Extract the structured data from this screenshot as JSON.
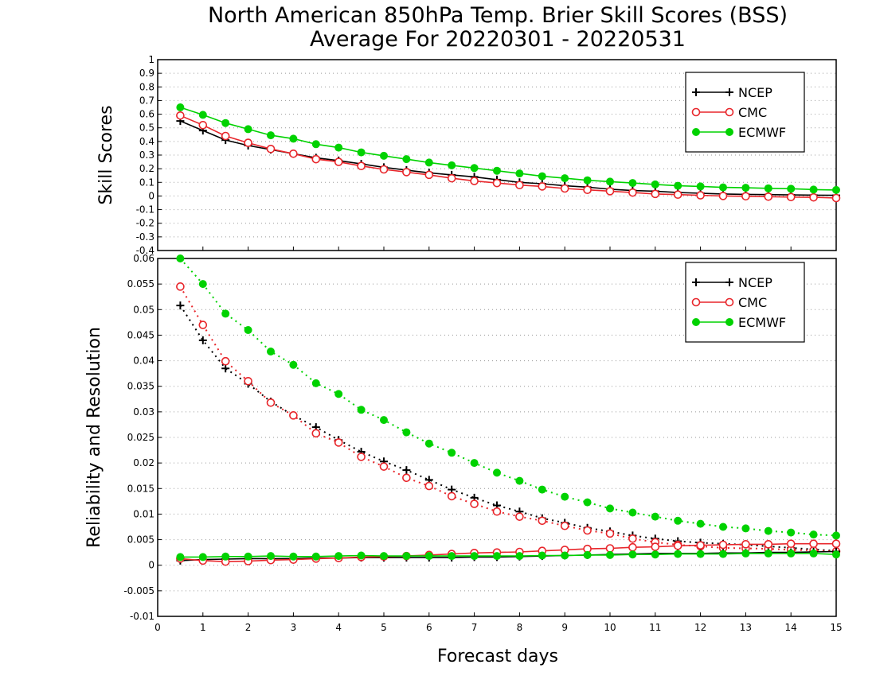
{
  "title_line1": "North American 850hPa Temp. Brier Skill Scores (BSS)",
  "title_line2": "Average For 20220301 - 20220531",
  "xlabel": "Forecast days",
  "legend_position": "top-right",
  "colors": {
    "NCEP": "#000000",
    "CMC": "#e8262b",
    "ECMWF": "#00d200"
  },
  "chart_data": [
    {
      "type": "line",
      "ylabel": "Skill Scores",
      "xlim": [
        0,
        15
      ],
      "ylim": [
        -0.4,
        1
      ],
      "x_ticks": [
        0,
        1,
        2,
        3,
        4,
        5,
        6,
        7,
        8,
        9,
        10,
        11,
        12,
        13,
        14,
        15
      ],
      "y_ticks": [
        "-0.4",
        "-0.3",
        "-0.2",
        "-0.1",
        "0",
        "0.1",
        "0.2",
        "0.3",
        "0.4",
        "0.5",
        "0.6",
        "0.7",
        "0.8",
        "0.9",
        "1"
      ],
      "grid": true,
      "x": [
        0.5,
        1,
        1.5,
        2,
        2.5,
        3,
        3.5,
        4,
        4.5,
        5,
        5.5,
        6,
        6.5,
        7,
        7.5,
        8,
        8.5,
        9,
        9.5,
        10,
        10.5,
        11,
        11.5,
        12,
        12.5,
        13,
        13.5,
        14,
        14.5,
        15
      ],
      "series": [
        {
          "name": "NCEP",
          "marker": "plus",
          "values": [
            0.55,
            0.48,
            0.41,
            0.37,
            0.34,
            0.31,
            0.28,
            0.26,
            0.235,
            0.21,
            0.19,
            0.17,
            0.155,
            0.14,
            0.12,
            0.1,
            0.09,
            0.075,
            0.065,
            0.05,
            0.04,
            0.035,
            0.025,
            0.02,
            0.015,
            0.012,
            0.01,
            0.008,
            0.006,
            0.005
          ]
        },
        {
          "name": "CMC",
          "marker": "circle",
          "values": [
            0.59,
            0.52,
            0.44,
            0.39,
            0.345,
            0.31,
            0.27,
            0.25,
            0.22,
            0.195,
            0.175,
            0.155,
            0.13,
            0.11,
            0.095,
            0.08,
            0.07,
            0.055,
            0.045,
            0.035,
            0.025,
            0.015,
            0.01,
            0.005,
            0.0,
            -0.002,
            -0.005,
            -0.008,
            -0.01,
            -0.015
          ]
        },
        {
          "name": "ECMWF",
          "marker": "dot",
          "values": [
            0.65,
            0.595,
            0.535,
            0.49,
            0.445,
            0.42,
            0.38,
            0.355,
            0.32,
            0.295,
            0.27,
            0.245,
            0.225,
            0.205,
            0.185,
            0.165,
            0.145,
            0.13,
            0.115,
            0.105,
            0.095,
            0.085,
            0.075,
            0.07,
            0.063,
            0.06,
            0.056,
            0.053,
            0.047,
            0.044
          ]
        }
      ]
    },
    {
      "type": "line",
      "ylabel": "Reliability and Resolution",
      "xlim": [
        0,
        15
      ],
      "ylim": [
        -0.01,
        0.06
      ],
      "x_ticks": [
        0,
        1,
        2,
        3,
        4,
        5,
        6,
        7,
        8,
        9,
        10,
        11,
        12,
        13,
        14,
        15
      ],
      "y_ticks": [
        "-0.01",
        "-0.005",
        "0",
        "0.005",
        "0.01",
        "0.015",
        "0.02",
        "0.025",
        "0.03",
        "0.035",
        "0.04",
        "0.045",
        "0.05",
        "0.055",
        "0.06"
      ],
      "grid": true,
      "x": [
        0.5,
        1,
        1.5,
        2,
        2.5,
        3,
        3.5,
        4,
        4.5,
        5,
        5.5,
        6,
        6.5,
        7,
        7.5,
        8,
        8.5,
        9,
        9.5,
        10,
        10.5,
        11,
        11.5,
        12,
        12.5,
        13,
        13.5,
        14,
        14.5,
        15
      ],
      "series": [
        {
          "name": "NCEP",
          "marker": "plus",
          "kind": "resolution",
          "values": [
            0.0508,
            0.044,
            0.0385,
            0.0355,
            0.032,
            0.0293,
            0.027,
            0.0245,
            0.0222,
            0.0203,
            0.0186,
            0.0167,
            0.0148,
            0.0132,
            0.0117,
            0.0105,
            0.0092,
            0.0083,
            0.0073,
            0.0066,
            0.0058,
            0.0052,
            0.0047,
            0.0044,
            0.0042,
            0.004,
            0.0037,
            0.0034,
            0.0031,
            0.0028
          ]
        },
        {
          "name": "CMC",
          "marker": "circle",
          "kind": "resolution",
          "values": [
            0.0545,
            0.047,
            0.0399,
            0.036,
            0.0318,
            0.0293,
            0.0258,
            0.024,
            0.0212,
            0.0193,
            0.0171,
            0.0155,
            0.0135,
            0.012,
            0.0105,
            0.0095,
            0.0087,
            0.0077,
            0.0068,
            0.0062,
            0.0052,
            0.0045,
            0.004,
            0.0037,
            0.0034,
            0.0033,
            0.0032,
            0.003,
            0.0029,
            0.0027
          ]
        },
        {
          "name": "ECMWF",
          "marker": "dot",
          "kind": "resolution",
          "values": [
            0.06,
            0.055,
            0.0492,
            0.046,
            0.0418,
            0.0392,
            0.0356,
            0.0335,
            0.0304,
            0.0284,
            0.026,
            0.0238,
            0.022,
            0.02,
            0.0181,
            0.0165,
            0.0148,
            0.0134,
            0.0123,
            0.0111,
            0.0103,
            0.0095,
            0.0087,
            0.0081,
            0.0075,
            0.0072,
            0.0067,
            0.0064,
            0.006,
            0.0058
          ]
        },
        {
          "name": "NCEP",
          "marker": "plus",
          "kind": "reliability",
          "values": [
            0.0009,
            0.0011,
            0.0012,
            0.0013,
            0.0013,
            0.0013,
            0.0014,
            0.0014,
            0.0015,
            0.0015,
            0.0015,
            0.0015,
            0.0015,
            0.0016,
            0.0016,
            0.0017,
            0.0018,
            0.0019,
            0.002,
            0.0021,
            0.0022,
            0.0023,
            0.0023,
            0.0023,
            0.0024,
            0.0024,
            0.0025,
            0.0025,
            0.0026,
            0.0027
          ]
        },
        {
          "name": "CMC",
          "marker": "circle",
          "kind": "reliability",
          "values": [
            0.0013,
            0.0009,
            0.0007,
            0.0008,
            0.001,
            0.0011,
            0.0013,
            0.0014,
            0.0016,
            0.0017,
            0.0018,
            0.002,
            0.0022,
            0.0024,
            0.0025,
            0.0026,
            0.0028,
            0.003,
            0.0032,
            0.0033,
            0.0035,
            0.0036,
            0.0038,
            0.0039,
            0.004,
            0.0041,
            0.0041,
            0.0042,
            0.0042,
            0.0042
          ]
        },
        {
          "name": "ECMWF",
          "marker": "dot",
          "kind": "reliability",
          "values": [
            0.0016,
            0.0016,
            0.0017,
            0.0017,
            0.0018,
            0.0017,
            0.0017,
            0.0018,
            0.0019,
            0.0018,
            0.0018,
            0.0018,
            0.0018,
            0.0018,
            0.0018,
            0.0018,
            0.0019,
            0.0019,
            0.002,
            0.002,
            0.0021,
            0.0021,
            0.0022,
            0.0022,
            0.0022,
            0.0023,
            0.0023,
            0.0023,
            0.0023,
            0.0021
          ]
        }
      ]
    }
  ]
}
